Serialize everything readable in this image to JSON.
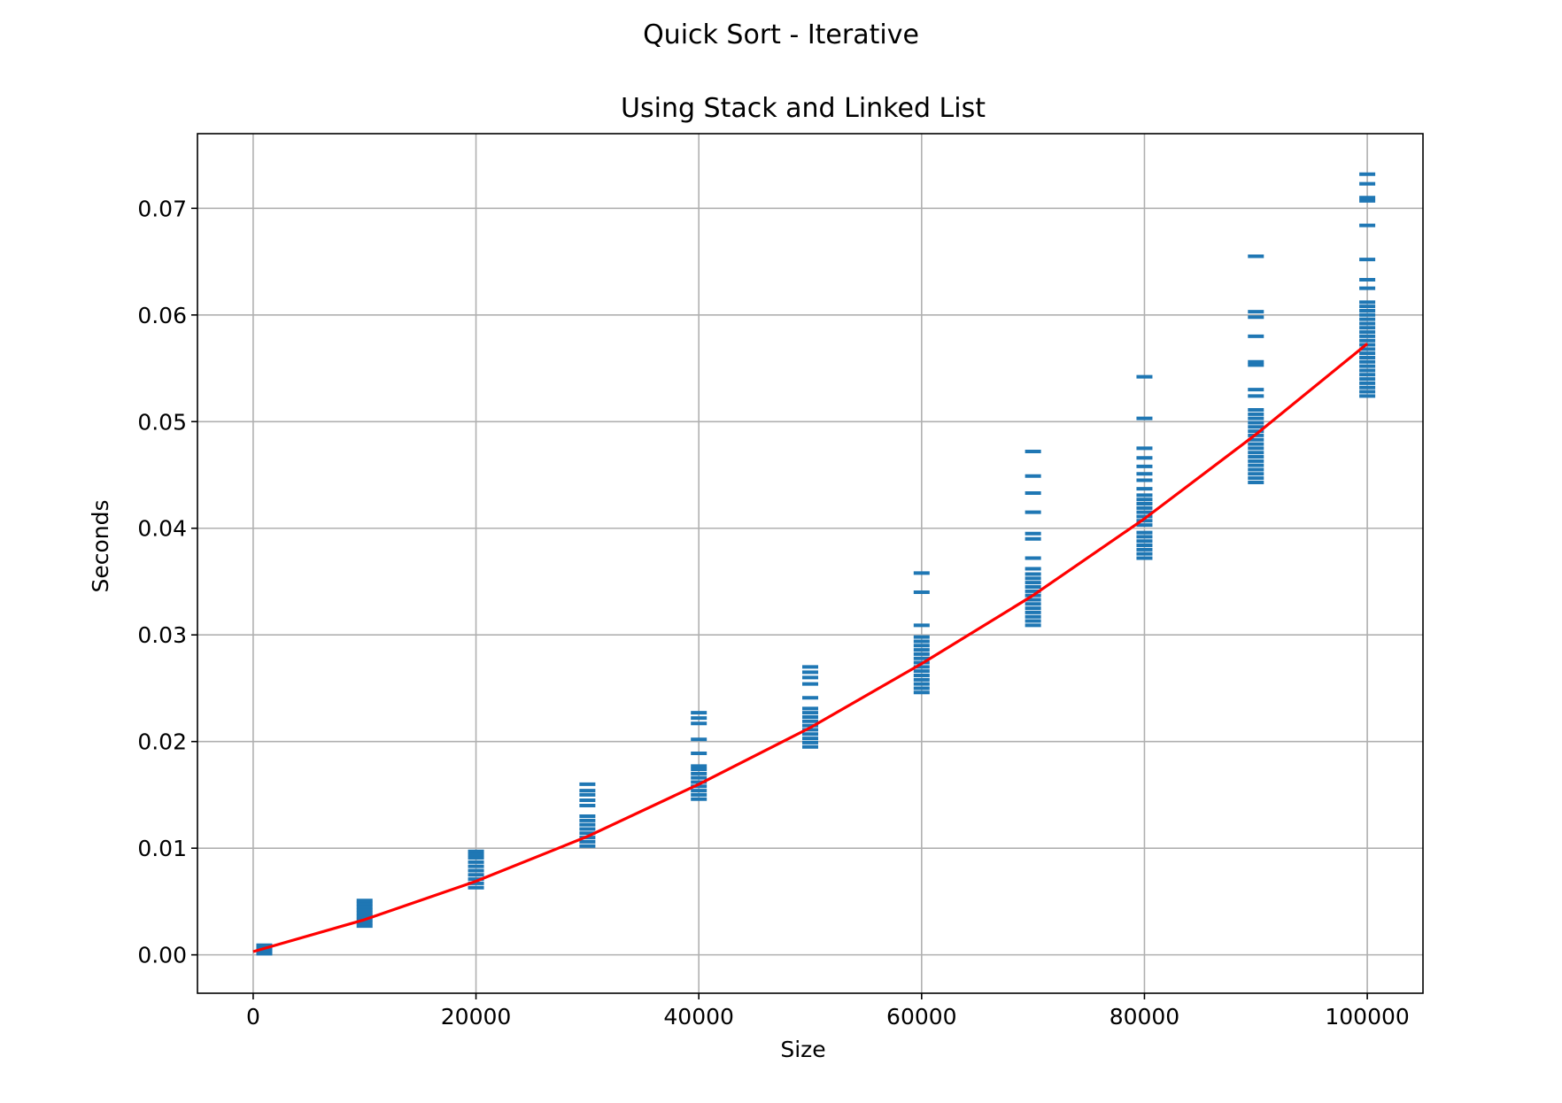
{
  "chart_data": {
    "type": "scatter",
    "suptitle": "Quick Sort - Iterative",
    "title": "Using Stack and Linked List",
    "xlabel": "Size",
    "ylabel": "Seconds",
    "xlim": [
      -5000,
      105000
    ],
    "ylim": [
      -0.0036,
      0.077
    ],
    "grid": true,
    "x_ticks": [
      0,
      20000,
      40000,
      60000,
      80000,
      100000
    ],
    "x_tick_labels": [
      "0",
      "20000",
      "40000",
      "60000",
      "80000",
      "100000"
    ],
    "y_ticks": [
      0.0,
      0.01,
      0.02,
      0.03,
      0.04,
      0.05,
      0.06,
      0.07
    ],
    "y_tick_labels": [
      "0.00",
      "0.01",
      "0.02",
      "0.03",
      "0.04",
      "0.05",
      "0.06",
      "0.07"
    ],
    "colors": {
      "scatter": "#1f77b4",
      "fit": "#ff0000",
      "grid": "#b0b0b0"
    },
    "series": [
      {
        "kind": "scatter",
        "marker": "hline",
        "points": [
          {
            "x": 1000,
            "ys": [
              0.0001,
              0.0002,
              0.0003,
              0.0004,
              0.0005,
              0.0006,
              0.0007,
              0.0008,
              0.0009
            ]
          },
          {
            "x": 10000,
            "ys": [
              0.0027,
              0.003,
              0.0033,
              0.0036,
              0.0039,
              0.0042,
              0.0045,
              0.0048,
              0.0051
            ]
          },
          {
            "x": 20000,
            "ys": [
              0.0063,
              0.0067,
              0.0071,
              0.0075,
              0.0079,
              0.0083,
              0.0087,
              0.0091,
              0.0094,
              0.0097
            ]
          },
          {
            "x": 30000,
            "ys": [
              0.0102,
              0.0106,
              0.011,
              0.0114,
              0.0118,
              0.0122,
              0.0126,
              0.013,
              0.014,
              0.0145,
              0.015,
              0.0154,
              0.016
            ]
          },
          {
            "x": 40000,
            "ys": [
              0.0146,
              0.015,
              0.0154,
              0.0158,
              0.0162,
              0.0166,
              0.017,
              0.0174,
              0.0177,
              0.0189,
              0.0202,
              0.0217,
              0.0222,
              0.0227
            ]
          },
          {
            "x": 50000,
            "ys": [
              0.0195,
              0.0199,
              0.0203,
              0.0207,
              0.0211,
              0.0215,
              0.0219,
              0.0223,
              0.0227,
              0.0231,
              0.0241,
              0.0254,
              0.026,
              0.0265,
              0.027
            ]
          },
          {
            "x": 60000,
            "ys": [
              0.0246,
              0.025,
              0.0254,
              0.0258,
              0.0262,
              0.0266,
              0.027,
              0.0274,
              0.0278,
              0.0282,
              0.0286,
              0.029,
              0.0294,
              0.0298,
              0.0309,
              0.034,
              0.0358
            ]
          },
          {
            "x": 70000,
            "ys": [
              0.0309,
              0.0313,
              0.0317,
              0.0321,
              0.0325,
              0.0329,
              0.0333,
              0.0337,
              0.0341,
              0.0345,
              0.0349,
              0.0353,
              0.0357,
              0.0362,
              0.0372,
              0.039,
              0.0395,
              0.0415,
              0.0433,
              0.0449,
              0.0472
            ]
          },
          {
            "x": 80000,
            "ys": [
              0.0372,
              0.0376,
              0.038,
              0.0384,
              0.0388,
              0.0392,
              0.0396,
              0.0403,
              0.0407,
              0.0411,
              0.0415,
              0.0419,
              0.0423,
              0.0427,
              0.0431,
              0.0437,
              0.0445,
              0.0451,
              0.0458,
              0.0466,
              0.0475,
              0.0503,
              0.0542
            ]
          },
          {
            "x": 90000,
            "ys": [
              0.0443,
              0.0447,
              0.0451,
              0.0455,
              0.0459,
              0.0463,
              0.0467,
              0.0471,
              0.0475,
              0.0479,
              0.0483,
              0.0487,
              0.0491,
              0.0495,
              0.0499,
              0.0503,
              0.0507,
              0.0511,
              0.0524,
              0.053,
              0.0553,
              0.0556,
              0.058,
              0.0598,
              0.0603,
              0.0655
            ]
          },
          {
            "x": 100000,
            "ys": [
              0.0524,
              0.0528,
              0.0532,
              0.0536,
              0.054,
              0.0544,
              0.0548,
              0.0552,
              0.0556,
              0.056,
              0.0564,
              0.0568,
              0.0572,
              0.0576,
              0.058,
              0.0584,
              0.0588,
              0.0592,
              0.0596,
              0.06,
              0.0604,
              0.0608,
              0.0612,
              0.0625,
              0.0633,
              0.0652,
              0.0684,
              0.0707,
              0.071,
              0.0723,
              0.0732
            ]
          }
        ]
      },
      {
        "kind": "line",
        "x": [
          0,
          10000,
          20000,
          30000,
          40000,
          50000,
          60000,
          70000,
          80000,
          90000,
          100000
        ],
        "y": [
          0.0003,
          0.0033,
          0.0069,
          0.0111,
          0.016,
          0.0213,
          0.0273,
          0.0337,
          0.0409,
          0.0488,
          0.0573
        ]
      }
    ]
  }
}
